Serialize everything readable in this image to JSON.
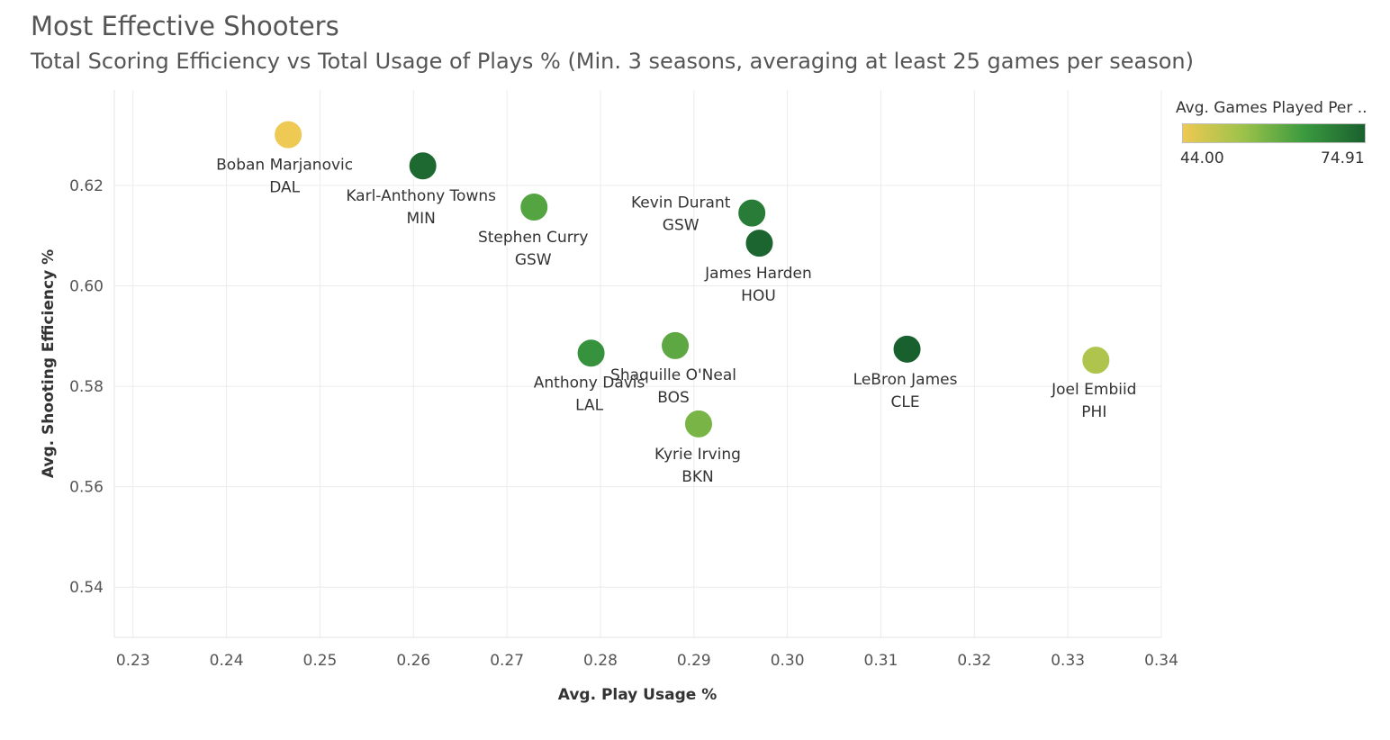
{
  "chart_data": {
    "type": "scatter",
    "title": "Most Effective Shooters",
    "subtitle": "Total Scoring Efficiency vs Total Usage of Plays % (Min. 3 seasons, averaging at least 25 games per season)",
    "xlabel": "Avg. Play Usage %",
    "ylabel": "Avg. Shooting Efficiency %",
    "xlim": [
      0.228,
      0.34
    ],
    "ylim": [
      0.53,
      0.639
    ],
    "xticks": [
      "0.23",
      "0.24",
      "0.25",
      "0.26",
      "0.27",
      "0.28",
      "0.29",
      "0.30",
      "0.31",
      "0.32",
      "0.33",
      "0.34"
    ],
    "yticks": [
      "0.54",
      "0.56",
      "0.58",
      "0.60",
      "0.62"
    ],
    "grid": true,
    "legend": {
      "title": "Avg. Games Played Per ..",
      "min_label": "44.00",
      "max_label": "74.91",
      "colors": [
        "#eec953",
        "#9cc24a",
        "#3b9a3f",
        "#19602f"
      ],
      "placement": "top-right"
    },
    "points": [
      {
        "name": "Boban Marjanovic",
        "team": "DAL",
        "x": 0.2466,
        "y": 0.6301,
        "games": 44.0
      },
      {
        "name": "Karl-Anthony Towns",
        "team": "MIN",
        "x": 0.261,
        "y": 0.6239,
        "games": 73.5
      },
      {
        "name": "Stephen Curry",
        "team": "GSW",
        "x": 0.2729,
        "y": 0.6157,
        "games": 62.0
      },
      {
        "name": "Kevin Durant",
        "team": "GSW",
        "x": 0.2962,
        "y": 0.6145,
        "games": 70.0
      },
      {
        "name": "James Harden",
        "team": "HOU",
        "x": 0.297,
        "y": 0.6085,
        "games": 74.0
      },
      {
        "name": "Anthony Davis",
        "team": "LAL",
        "x": 0.279,
        "y": 0.5866,
        "games": 66.0
      },
      {
        "name": "Shaquille O'Neal",
        "team": "BOS",
        "x": 0.288,
        "y": 0.5881,
        "games": 61.0
      },
      {
        "name": "Kyrie Irving",
        "team": "BKN",
        "x": 0.2905,
        "y": 0.5725,
        "games": 58.0
      },
      {
        "name": "LeBron James",
        "team": "CLE",
        "x": 0.3128,
        "y": 0.5874,
        "games": 74.91
      },
      {
        "name": "Joel Embiid",
        "team": "PHI",
        "x": 0.333,
        "y": 0.5852,
        "games": 52.0
      }
    ]
  }
}
